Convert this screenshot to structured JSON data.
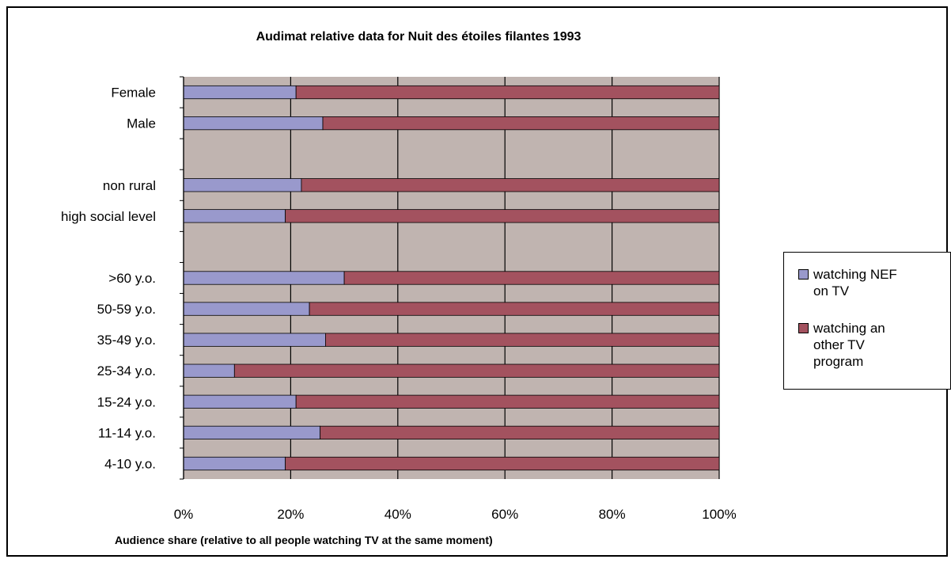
{
  "chart_data": {
    "type": "bar",
    "orientation": "horizontal",
    "stacked": "percent",
    "title": "Audimat relative data for Nuit des étoiles filantes 1993",
    "xlabel": "Audience share (relative to all people watching TV at the same moment)",
    "ylabel": "",
    "xlim": [
      0,
      100
    ],
    "x_ticks": [
      "0%",
      "20%",
      "40%",
      "60%",
      "80%",
      "100%"
    ],
    "grid": true,
    "legend_position": "right",
    "categories": [
      "Female",
      "Male",
      "",
      "non rural",
      "high social level",
      "",
      ">60 y.o.",
      "50-59 y.o.",
      "35-49 y.o.",
      "25-34 y.o.",
      "15-24 y.o.",
      "11-14 y.o.",
      "4-10 y.o."
    ],
    "series": [
      {
        "name": "watching NEF on TV",
        "color": "#9999cc",
        "values": [
          21,
          26,
          null,
          22,
          19,
          null,
          30,
          23.5,
          26.5,
          9.5,
          21,
          25.5,
          19
        ]
      },
      {
        "name": "watching an other TV program",
        "color": "#a3525f",
        "values": [
          79,
          74,
          null,
          78,
          81,
          null,
          70,
          76.5,
          73.5,
          90.5,
          79,
          74.5,
          81
        ]
      }
    ],
    "colors": {
      "plot_background": "#c0b4b0",
      "grid": "#000000"
    }
  }
}
